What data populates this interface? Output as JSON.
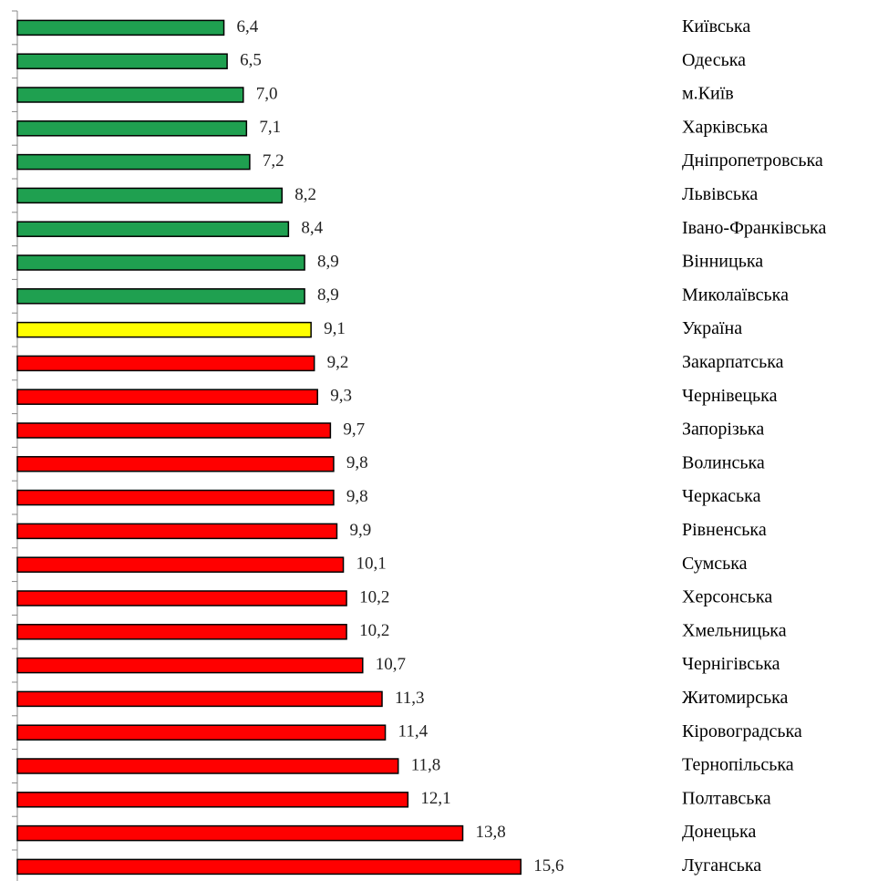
{
  "chart_data": {
    "type": "bar",
    "orientation": "horizontal",
    "categories": [
      "Київська",
      "Одеська",
      "м.Київ",
      "Харківська",
      "Дніпропетровська",
      "Львівська",
      "Івано-Франківська",
      "Вінницька",
      "Миколаївська",
      "Україна",
      "Закарпатська",
      "Чернівецька",
      "Запорізька",
      "Волинська",
      "Черкаська",
      "Рівненська",
      "Сумська",
      "Херсонська",
      "Хмельницька",
      "Чернігівська",
      "Житомирська",
      "Кіровоградська",
      "Тернопільська",
      "Полтавська",
      "Донецька",
      "Луганська"
    ],
    "values": [
      6.4,
      6.5,
      7.0,
      7.1,
      7.2,
      8.2,
      8.4,
      8.9,
      8.9,
      9.1,
      9.2,
      9.3,
      9.7,
      9.8,
      9.8,
      9.9,
      10.1,
      10.2,
      10.2,
      10.7,
      11.3,
      11.4,
      11.8,
      12.1,
      13.8,
      15.6
    ],
    "value_labels": [
      "6,4",
      "6,5",
      "7,0",
      "7,1",
      "7,2",
      "8,2",
      "8,4",
      "8,9",
      "8,9",
      "9,1",
      "9,2",
      "9,3",
      "9,7",
      "9,8",
      "9,8",
      "9,9",
      "10,1",
      "10,2",
      "10,2",
      "10,7",
      "11,3",
      "11,4",
      "11,8",
      "12,1",
      "13,8",
      "15,6"
    ],
    "colors": [
      "#1fa050",
      "#1fa050",
      "#1fa050",
      "#1fa050",
      "#1fa050",
      "#1fa050",
      "#1fa050",
      "#1fa050",
      "#1fa050",
      "#ffff00",
      "#ff0000",
      "#ff0000",
      "#ff0000",
      "#ff0000",
      "#ff0000",
      "#ff0000",
      "#ff0000",
      "#ff0000",
      "#ff0000",
      "#ff0000",
      "#ff0000",
      "#ff0000",
      "#ff0000",
      "#ff0000",
      "#ff0000",
      "#ff0000"
    ]
  }
}
